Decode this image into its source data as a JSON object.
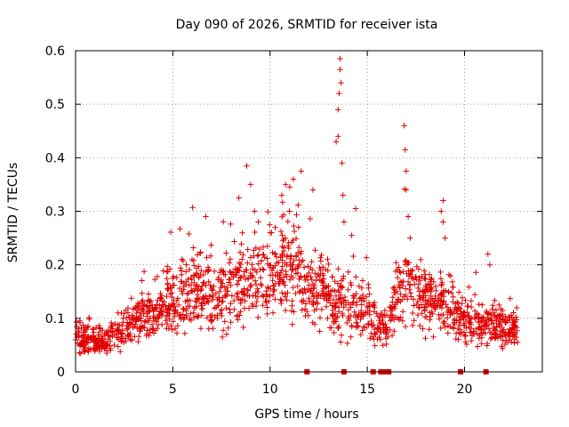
{
  "chart_data": {
    "type": "scatter",
    "title": "Day 090 of 2026, SRMTID for receiver ista",
    "xlabel": "GPS time / hours",
    "ylabel": "SRMTID / TECUs",
    "xlim": [
      0,
      24.0
    ],
    "ylim": [
      0,
      0.6
    ],
    "x_ticks": [
      0,
      5,
      10,
      15,
      20
    ],
    "x_tick_labels": [
      "0",
      "5",
      "10",
      "15",
      "20"
    ],
    "y_ticks": [
      0,
      0.1,
      0.2,
      0.3,
      0.4,
      0.5,
      0.6
    ],
    "y_tick_labels": [
      "0",
      "0.1",
      "0.2",
      "0.3",
      "0.4",
      "0.5",
      "0.6"
    ],
    "grid": true,
    "marker": "+",
    "color": "#e00000",
    "x_range_hours": [
      0,
      22.8
    ],
    "profile": [
      [
        0.0,
        0.07
      ],
      [
        0.5,
        0.062
      ],
      [
        1.0,
        0.055
      ],
      [
        1.5,
        0.055
      ],
      [
        2.0,
        0.065
      ],
      [
        2.5,
        0.08
      ],
      [
        3.0,
        0.095
      ],
      [
        3.5,
        0.105
      ],
      [
        4.0,
        0.11
      ],
      [
        4.5,
        0.12
      ],
      [
        5.0,
        0.13
      ],
      [
        5.5,
        0.14
      ],
      [
        6.0,
        0.15
      ],
      [
        6.5,
        0.155
      ],
      [
        7.0,
        0.145
      ],
      [
        7.5,
        0.14
      ],
      [
        8.0,
        0.15
      ],
      [
        8.5,
        0.17
      ],
      [
        9.0,
        0.175
      ],
      [
        9.5,
        0.175
      ],
      [
        10.0,
        0.18
      ],
      [
        10.5,
        0.2
      ],
      [
        11.0,
        0.21
      ],
      [
        11.5,
        0.18
      ],
      [
        12.0,
        0.16
      ],
      [
        12.5,
        0.15
      ],
      [
        13.0,
        0.14
      ],
      [
        13.5,
        0.13
      ],
      [
        14.0,
        0.13
      ],
      [
        14.5,
        0.12
      ],
      [
        15.0,
        0.11
      ],
      [
        15.5,
        0.09
      ],
      [
        16.0,
        0.09
      ],
      [
        16.5,
        0.14
      ],
      [
        17.0,
        0.16
      ],
      [
        17.5,
        0.15
      ],
      [
        18.0,
        0.14
      ],
      [
        18.5,
        0.13
      ],
      [
        19.0,
        0.12
      ],
      [
        19.5,
        0.11
      ],
      [
        20.0,
        0.1
      ],
      [
        20.5,
        0.09
      ],
      [
        21.0,
        0.085
      ],
      [
        21.5,
        0.09
      ],
      [
        22.0,
        0.08
      ],
      [
        22.8,
        0.08
      ]
    ],
    "spike_points": [
      [
        8.8,
        0.385
      ],
      [
        9.0,
        0.35
      ],
      [
        9.2,
        0.3
      ],
      [
        9.4,
        0.28
      ],
      [
        10.0,
        0.26
      ],
      [
        10.6,
        0.33
      ],
      [
        10.8,
        0.35
      ],
      [
        11.0,
        0.3
      ],
      [
        11.2,
        0.36
      ],
      [
        11.6,
        0.375
      ],
      [
        12.2,
        0.34
      ],
      [
        13.4,
        0.43
      ],
      [
        13.5,
        0.49
      ],
      [
        13.55,
        0.52
      ],
      [
        13.6,
        0.565
      ],
      [
        13.6,
        0.585
      ],
      [
        13.65,
        0.54
      ],
      [
        13.7,
        0.39
      ],
      [
        13.75,
        0.33
      ],
      [
        13.5,
        0.44
      ],
      [
        13.8,
        0.28
      ],
      [
        14.4,
        0.305
      ],
      [
        14.2,
        0.255
      ],
      [
        16.9,
        0.46
      ],
      [
        16.95,
        0.415
      ],
      [
        17.0,
        0.375
      ],
      [
        17.0,
        0.34
      ],
      [
        17.1,
        0.29
      ],
      [
        17.2,
        0.25
      ],
      [
        18.9,
        0.32
      ],
      [
        18.8,
        0.3
      ],
      [
        18.9,
        0.28
      ],
      [
        19.0,
        0.25
      ],
      [
        21.2,
        0.22
      ],
      [
        21.3,
        0.2
      ]
    ],
    "gap_markers_hours": [
      11.9,
      13.8,
      15.3,
      15.7,
      15.9,
      16.0,
      16.1,
      19.8,
      21.1
    ]
  }
}
